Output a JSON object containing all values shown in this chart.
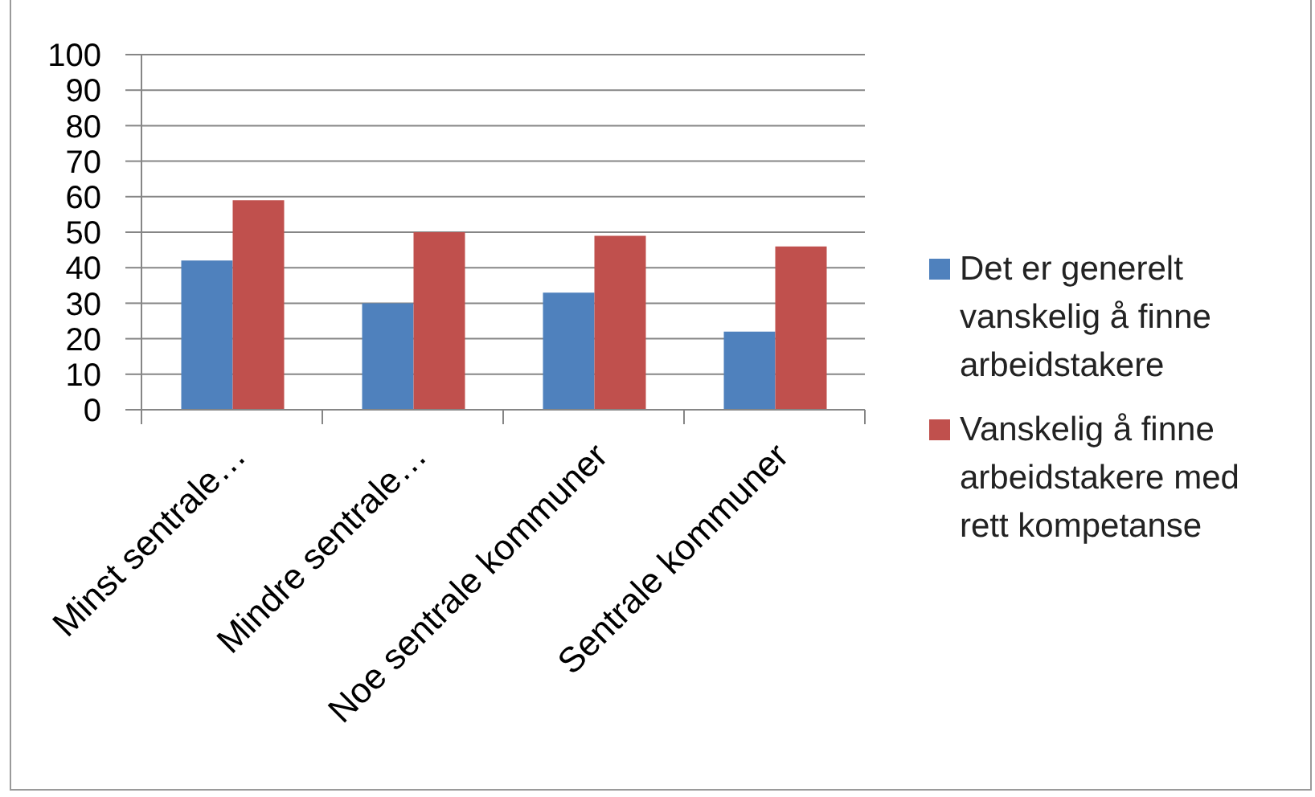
{
  "chart_data": {
    "type": "bar",
    "categories": [
      "Minst sentrale…",
      "Mindre sentrale…",
      "Noe sentrale kommuner",
      "Sentrale kommuner"
    ],
    "series": [
      {
        "name": "Det er generelt vanskelig å finne arbeidstakere",
        "color": "#4f81bd",
        "values": [
          42,
          30,
          33,
          22
        ]
      },
      {
        "name": "Vanskelig å finne arbeidstakere med rett kompetanse",
        "color": "#c0504d",
        "values": [
          59,
          50,
          49,
          46
        ]
      }
    ],
    "ylim": [
      0,
      100
    ],
    "yticks": [
      0,
      10,
      20,
      30,
      40,
      50,
      60,
      70,
      80,
      90,
      100
    ],
    "grid": "y",
    "legend": "right"
  }
}
